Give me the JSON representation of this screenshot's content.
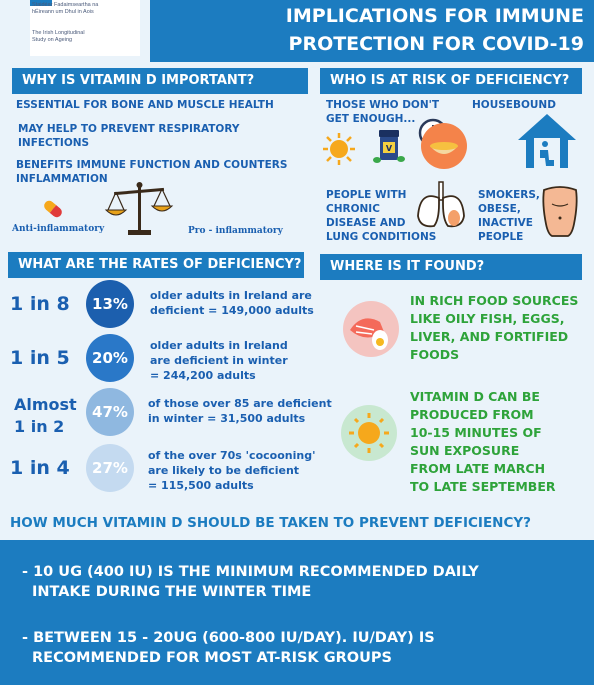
{
  "header": {
    "logo_line1": "Staidéar Fadaimseartha na",
    "logo_line2": "hÉireann um Dhul in Aois",
    "logo_sub1": "The Irish Longitudinal",
    "logo_sub2": "Study on Ageing",
    "title_line1": "IMPLICATIONS FOR IMMUNE",
    "title_line2": "PROTECTION FOR COVID-19"
  },
  "why": {
    "heading": "WHY IS VITAMIN D IMPORTANT?",
    "points": [
      "ESSENTIAL FOR BONE AND MUSCLE HEALTH",
      "MAY HELP TO PREVENT RESPIRATORY",
      "INFECTIONS",
      "BENEFITS IMMUNE FUNCTION AND COUNTERS",
      "INFLAMMATION"
    ],
    "anti_label": "Anti-inflammatory",
    "pro_label": "Pro - inflammatory"
  },
  "risk": {
    "heading": "WHO IS AT RISK OF DEFICIENCY?",
    "not_enough_1": "THOSE WHO DON'T",
    "not_enough_2": "GET ENOUGH...",
    "housebound": "HOUSEBOUND",
    "chronic_1": "PEOPLE WITH",
    "chronic_2": "CHRONIC",
    "chronic_3": "DISEASE AND",
    "chronic_4": "LUNG CONDITIONS",
    "smokers_1": "SMOKERS,",
    "smokers_2": "OBESE,",
    "smokers_3": "INACTIVE",
    "smokers_4": "PEOPLE"
  },
  "rates": {
    "heading": "WHAT ARE THE RATES OF DEFICIENCY?",
    "items": [
      {
        "label": "1 in 8",
        "pct": "13%",
        "pct_value": 13,
        "color": "#1c5fae",
        "desc": [
          "older adults in Ireland are",
          "deficient = 149,000 adults"
        ]
      },
      {
        "label": "1 in 5",
        "pct": "20%",
        "pct_value": 20,
        "color": "#2a78c8",
        "desc": [
          "older adults in Ireland",
          "are deficient in winter",
          "= 244,200 adults"
        ]
      },
      {
        "label_1": "Almost",
        "label_2": "1 in 2",
        "pct": "47%",
        "pct_value": 47,
        "color": "#8fb8e0",
        "desc": [
          "of those over 85 are deficient",
          "in winter = 31,500 adults"
        ]
      },
      {
        "label": "1 in 4",
        "pct": "27%",
        "pct_value": 27,
        "color": "#c4daf0",
        "desc": [
          "of the over 70s  'cocooning'",
          "are likely to be deficient",
          "= 115,500 adults"
        ]
      }
    ]
  },
  "found": {
    "heading": "WHERE IS IT FOUND?",
    "food": [
      "IN RICH FOOD SOURCES",
      "LIKE OILY FISH, EGGS,",
      "LIVER, AND FORTIFIED",
      "FOODS"
    ],
    "sun": [
      "VITAMIN D CAN BE",
      "PRODUCED FROM",
      "10-15 MINUTES OF",
      "SUN EXPOSURE",
      "FROM LATE MARCH",
      "TO LATE SEPTEMBER"
    ]
  },
  "dose": {
    "heading": "HOW MUCH VITAMIN D SHOULD BE TAKEN TO PREVENT DEFICIENCY?",
    "item1_line1": "- 10 UG (400 IU) IS THE MINIMUM RECOMMENDED DAILY",
    "item1_line2": "INTAKE DURING THE WINTER TIME",
    "item2_line1": "- BETWEEN 15 - 20UG (600-800 IU/DAY). IU/DAY) IS",
    "item2_line2": "RECOMMENDED FOR MOST AT-RISK GROUPS"
  },
  "colors": {
    "primary": "#1c7cc0",
    "text_blue": "#1a5fb0",
    "text_green": "#2ea33a",
    "sun": "#f6a81c"
  },
  "icons": [
    "capsule-icon",
    "scales-icon",
    "sun-icon",
    "pills-icon",
    "clock-icon",
    "food-bowl-icon",
    "house-icon",
    "lungs-icon",
    "torso-icon",
    "fish-egg-icon"
  ]
}
